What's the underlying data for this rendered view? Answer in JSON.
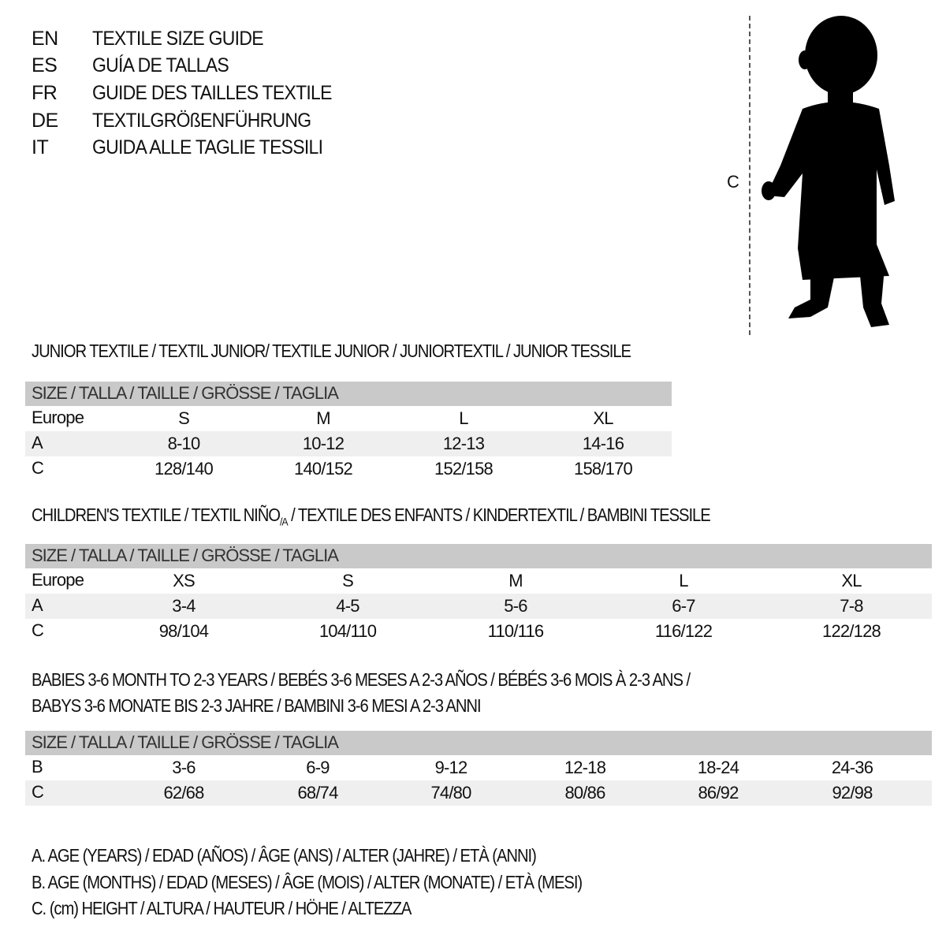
{
  "guide": [
    {
      "lang": "EN",
      "title": "TEXTILE SIZE GUIDE"
    },
    {
      "lang": "ES",
      "title": "GUÍA DE TALLAS"
    },
    {
      "lang": "FR",
      "title": "GUIDE DES TAILLES TEXTILE"
    },
    {
      "lang": "DE",
      "title": "TEXTILGRÖßENFÜHRUNG"
    },
    {
      "lang": "IT",
      "title": "GUIDA ALLE TAGLIE TESSILI"
    }
  ],
  "figure": {
    "height_label": "C"
  },
  "size_header": "SIZE / TALLA / TAILLE / GRÖSSE / TAGLIA",
  "junior": {
    "title": "JUNIOR TEXTILE / TEXTIL JUNIOR/ TEXTILE JUNIOR / JUNIORTEXTIL / JUNIOR TESSILE",
    "rows": [
      {
        "label": "Europe",
        "values": [
          "S",
          "M",
          "L",
          "XL"
        ]
      },
      {
        "label": "A",
        "values": [
          "8-10",
          "10-12",
          "12-13",
          "14-16"
        ]
      },
      {
        "label": "C",
        "values": [
          "128/140",
          "140/152",
          "152/158",
          "158/170"
        ]
      }
    ]
  },
  "children": {
    "title_a": "CHILDREN'S TEXTILE / TEXTIL NIÑO",
    "title_sub": "/A",
    "title_b": " / TEXTILE DES ENFANTS / KINDERTEXTIL / BAMBINI TESSILE",
    "rows": [
      {
        "label": "Europe",
        "values": [
          "XS",
          "S",
          "M",
          "L",
          "XL"
        ]
      },
      {
        "label": "A",
        "values": [
          "3-4",
          "4-5",
          "5-6",
          "6-7",
          "7-8"
        ]
      },
      {
        "label": "C",
        "values": [
          "98/104",
          "104/110",
          "110/116",
          "116/122",
          "122/128"
        ]
      }
    ]
  },
  "babies": {
    "title_1": "BABIES 3-6 MONTH TO 2-3 YEARS / BEBÉS 3-6 MESES A 2-3 AÑOS / BÉBÉS 3-6 MOIS À 2-3 ANS /",
    "title_2": "BABYS 3-6 MONATE BIS 2-3 JAHRE / BAMBINI 3-6 MESI A 2-3 ANNI",
    "rows": [
      {
        "label": "B",
        "values": [
          "3-6",
          "6-9",
          "9-12",
          "12-18",
          "18-24",
          "24-36"
        ]
      },
      {
        "label": "C",
        "values": [
          "62/68",
          "68/74",
          "74/80",
          "80/86",
          "86/92",
          "92/98"
        ]
      }
    ]
  },
  "legend": [
    "A. AGE (YEARS) / EDAD (AÑOS) / ÂGE (ANS) / ALTER (JAHRE) / ETÀ (ANNI)",
    "B. AGE (MONTHS) / EDAD (MESES) / ÂGE (MOIS) / ALTER (MONATE) / ETÀ (MESI)",
    "C. (cm) HEIGHT / ALTURA / HAUTEUR / HÖHE / ALTEZZA"
  ]
}
